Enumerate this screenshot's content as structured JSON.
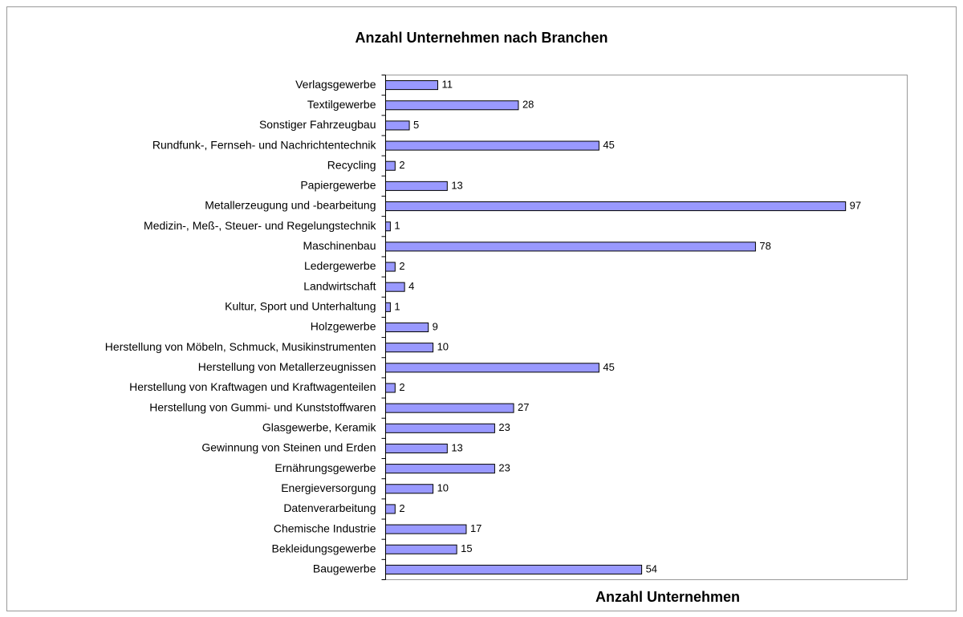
{
  "chart_data": {
    "type": "bar",
    "orientation": "horizontal",
    "title": "Anzahl Unternehmen nach Branchen",
    "xlabel": "Anzahl Unternehmen",
    "categories": [
      "Verlagsgewerbe",
      "Textilgewerbe",
      "Sonstiger Fahrzeugbau",
      "Rundfunk-, Fernseh- und Nachrichtentechnik",
      "Recycling",
      "Papiergewerbe",
      "Metallerzeugung und -bearbeitung",
      "Medizin-, Meß-, Steuer- und Regelungstechnik",
      "Maschinenbau",
      "Ledergewerbe",
      "Landwirtschaft",
      "Kultur, Sport und Unterhaltung",
      "Holzgewerbe",
      "Herstellung von Möbeln, Schmuck, Musikinstrumenten",
      "Herstellung von Metallerzeugnissen",
      "Herstellung von Kraftwagen und Kraftwagenteilen",
      "Herstellung von Gummi- und Kunststoffwaren",
      "Glasgewerbe, Keramik",
      "Gewinnung von Steinen und Erden",
      "Ernährungsgewerbe",
      "Energieversorgung",
      "Datenverarbeitung",
      "Chemische Industrie",
      "Bekleidungsgewerbe",
      "Baugewerbe"
    ],
    "values": [
      11,
      28,
      5,
      45,
      2,
      13,
      97,
      1,
      78,
      2,
      4,
      1,
      9,
      10,
      45,
      2,
      27,
      23,
      13,
      23,
      10,
      2,
      17,
      15,
      54
    ],
    "color": "#9999ff",
    "xlim": [
      0,
      110
    ]
  }
}
